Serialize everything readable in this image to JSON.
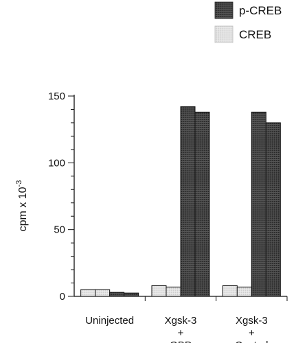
{
  "chart_data": {
    "type": "bar",
    "ylabel_base": "cpm x 10",
    "ylabel_exp": "-3",
    "ylim": [
      0,
      150
    ],
    "yticks": [
      0,
      50,
      100,
      150
    ],
    "groups": [
      {
        "label_lines": [
          "Uninjected"
        ],
        "values": [
          5,
          5,
          3,
          2.5
        ],
        "series_of_bars": [
          "CREB",
          "CREB",
          "p-CREB",
          "p-CREB"
        ]
      },
      {
        "label_lines": [
          "Xgsk-3",
          "+",
          "GBP"
        ],
        "values": [
          8,
          7,
          142,
          138
        ],
        "series_of_bars": [
          "CREB",
          "CREB",
          "p-CREB",
          "p-CREB"
        ]
      },
      {
        "label_lines": [
          "Xgsk-3",
          "+",
          "Control"
        ],
        "values": [
          8,
          7,
          138,
          130
        ],
        "series_of_bars": [
          "CREB",
          "CREB",
          "p-CREB",
          "p-CREB"
        ]
      }
    ],
    "legend": [
      {
        "name": "p-CREB",
        "color": "#3a3a3a"
      },
      {
        "name": "CREB",
        "color": "#d8d8d8"
      }
    ],
    "legend_position": "top-right",
    "grid": false
  }
}
